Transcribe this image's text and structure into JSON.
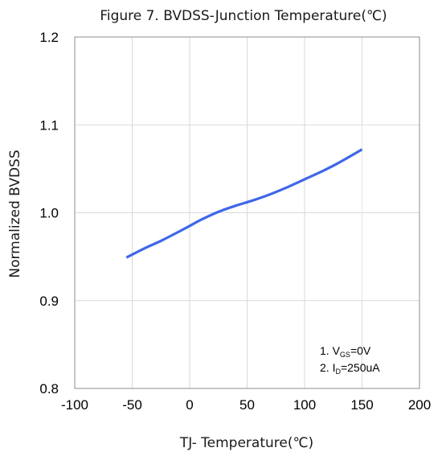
{
  "chart_data": {
    "type": "line",
    "title": "Figure 7. BVDSS-Junction Temperature(℃)",
    "xlabel": "TJ- Temperature(℃)",
    "ylabel": "Normalized BVDSS",
    "xlim": [
      -100,
      200
    ],
    "ylim": [
      0.8,
      1.2
    ],
    "x_ticks": [
      "-100",
      "-50",
      "0",
      "50",
      "100",
      "150",
      "200"
    ],
    "y_ticks": [
      "0.8",
      "0.9",
      "1.0",
      "1.1",
      "1.2"
    ],
    "grid": true,
    "line_color": "#3F67E8",
    "series": [
      {
        "x": [
          -55,
          -40,
          -25,
          -10,
          0,
          10,
          25,
          40,
          55,
          70,
          85,
          100,
          115,
          130,
          150
        ],
        "values": [
          0.949,
          0.959,
          0.968,
          0.978,
          0.985,
          0.992,
          1.001,
          1.008,
          1.014,
          1.021,
          1.029,
          1.038,
          1.047,
          1.057,
          1.072
        ]
      }
    ],
    "notes": {
      "line1": {
        "num": "1. ",
        "main": "V",
        "sub": "GS",
        "rest": "=0V"
      },
      "line2": {
        "num": "2. ",
        "main": "I",
        "sub": "D",
        "rest": "=250uA"
      }
    }
  }
}
